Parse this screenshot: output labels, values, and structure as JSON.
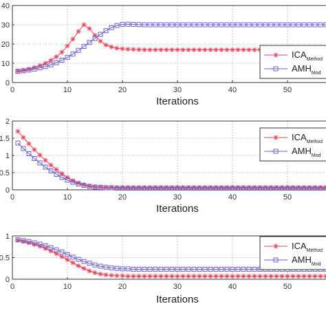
{
  "colors": {
    "ica": "#e8425a",
    "amh": "#6a5fc8",
    "grid": "#b8b8b8",
    "axis": "#333333"
  },
  "chart_data": [
    {
      "type": "line",
      "xlabel": "Iterations",
      "ylabel": "",
      "xlim": [
        0,
        57
      ],
      "ylim": [
        0,
        40
      ],
      "xticks": [
        0,
        10,
        20,
        30,
        40,
        50
      ],
      "yticks": [
        0,
        10,
        20,
        30,
        40
      ],
      "yticklabels": [
        "0",
        "10",
        "20",
        "30",
        "40"
      ],
      "grid": true,
      "legend": "right",
      "x": [
        1,
        2,
        3,
        4,
        5,
        6,
        7,
        8,
        9,
        10,
        11,
        12,
        13,
        14,
        15,
        16,
        17,
        18,
        19,
        20,
        21,
        22,
        23,
        24,
        25,
        26,
        27,
        28,
        29,
        30,
        31,
        32,
        33,
        34,
        35,
        36,
        37,
        38,
        39,
        40,
        41,
        42,
        43,
        44,
        45,
        46,
        47,
        48,
        49,
        50,
        51,
        52,
        53,
        54,
        55,
        56,
        57
      ],
      "series": [
        {
          "name": "ICA",
          "sub": "Method",
          "marker": "star",
          "values": [
            6,
            6.4,
            7,
            7.8,
            8.8,
            10,
            11.5,
            13.4,
            15.8,
            19,
            22.5,
            26.5,
            30,
            28,
            24.5,
            21.5,
            19.5,
            18.5,
            17.8,
            17.5,
            17.3,
            17.2,
            17.1,
            17,
            17,
            17,
            17,
            17,
            17,
            17,
            17,
            17,
            17,
            17,
            17,
            17,
            17,
            17,
            17,
            17,
            17,
            17,
            17,
            17,
            17,
            17,
            17,
            17,
            17,
            17,
            17,
            17,
            17,
            17,
            17,
            17,
            17
          ]
        },
        {
          "name": "AMH",
          "sub": "Mod",
          "marker": "square",
          "values": [
            5.8,
            6.1,
            6.5,
            7,
            7.6,
            8.3,
            9.2,
            10.3,
            11.6,
            13.1,
            14.8,
            16.7,
            18.7,
            20.8,
            22.9,
            25,
            26.9,
            28.5,
            29.6,
            30.2,
            30.3,
            30.2,
            30.1,
            30,
            30,
            30,
            30,
            30,
            30,
            30,
            30,
            30,
            30,
            30,
            30,
            30,
            30,
            30,
            30,
            30,
            30,
            30,
            30,
            30,
            30,
            30,
            30,
            30,
            30,
            30,
            30,
            30,
            30,
            30,
            30,
            30,
            30
          ]
        }
      ]
    },
    {
      "type": "line",
      "xlabel": "Iterations",
      "ylabel": "",
      "xlim": [
        0,
        57
      ],
      "ylim": [
        0,
        2
      ],
      "xticks": [
        0,
        10,
        20,
        30,
        40,
        50
      ],
      "yticks": [
        0,
        0.5,
        1,
        1.5,
        2
      ],
      "yticklabels": [
        "0",
        "0.5",
        "1",
        "1.5",
        "2"
      ],
      "grid": true,
      "legend": "right",
      "x": [
        1,
        2,
        3,
        4,
        5,
        6,
        7,
        8,
        9,
        10,
        11,
        12,
        13,
        14,
        15,
        16,
        17,
        18,
        19,
        20,
        21,
        22,
        23,
        24,
        25,
        26,
        27,
        28,
        29,
        30,
        31,
        32,
        33,
        34,
        35,
        36,
        37,
        38,
        39,
        40,
        41,
        42,
        43,
        44,
        45,
        46,
        47,
        48,
        49,
        50,
        51,
        52,
        53,
        54,
        55,
        56,
        57
      ],
      "series": [
        {
          "name": "ICA",
          "sub": "Method",
          "marker": "star",
          "values": [
            1.7,
            1.52,
            1.34,
            1.17,
            1.01,
            0.86,
            0.72,
            0.59,
            0.47,
            0.36,
            0.27,
            0.2,
            0.15,
            0.11,
            0.09,
            0.08,
            0.07,
            0.07,
            0.07,
            0.07,
            0.07,
            0.07,
            0.07,
            0.07,
            0.07,
            0.07,
            0.07,
            0.07,
            0.07,
            0.07,
            0.07,
            0.07,
            0.07,
            0.07,
            0.07,
            0.07,
            0.07,
            0.07,
            0.07,
            0.07,
            0.07,
            0.07,
            0.07,
            0.07,
            0.07,
            0.07,
            0.07,
            0.07,
            0.07,
            0.07,
            0.07,
            0.07,
            0.07,
            0.07,
            0.07,
            0.07,
            0.07
          ]
        },
        {
          "name": "AMH",
          "sub": "Mod",
          "marker": "square",
          "values": [
            1.36,
            1.2,
            1.05,
            0.91,
            0.78,
            0.66,
            0.55,
            0.45,
            0.36,
            0.28,
            0.22,
            0.17,
            0.13,
            0.1,
            0.08,
            0.07,
            0.06,
            0.06,
            0.05,
            0.05,
            0.05,
            0.05,
            0.05,
            0.05,
            0.05,
            0.05,
            0.05,
            0.05,
            0.05,
            0.05,
            0.05,
            0.05,
            0.05,
            0.05,
            0.05,
            0.05,
            0.05,
            0.05,
            0.05,
            0.05,
            0.05,
            0.05,
            0.05,
            0.05,
            0.05,
            0.05,
            0.05,
            0.05,
            0.05,
            0.05,
            0.05,
            0.05,
            0.05,
            0.05,
            0.05,
            0.05,
            0.05
          ]
        }
      ]
    },
    {
      "type": "line",
      "xlabel": "Iterations",
      "ylabel": "",
      "xlim": [
        0,
        57
      ],
      "ylim": [
        0,
        1
      ],
      "xticks": [
        0,
        10,
        20,
        30,
        40,
        50
      ],
      "yticks": [
        0,
        0.5,
        1
      ],
      "yticklabels": [
        "0",
        "0.5",
        "1"
      ],
      "grid": true,
      "legend": "right",
      "x": [
        1,
        2,
        3,
        4,
        5,
        6,
        7,
        8,
        9,
        10,
        11,
        12,
        13,
        14,
        15,
        16,
        17,
        18,
        19,
        20,
        21,
        22,
        23,
        24,
        25,
        26,
        27,
        28,
        29,
        30,
        31,
        32,
        33,
        34,
        35,
        36,
        37,
        38,
        39,
        40,
        41,
        42,
        43,
        44,
        45,
        46,
        47,
        48,
        49,
        50,
        51,
        52,
        53,
        54,
        55,
        56,
        57
      ],
      "series": [
        {
          "name": "ICA",
          "sub": "Method",
          "marker": "star",
          "values": [
            0.9,
            0.87,
            0.84,
            0.8,
            0.76,
            0.71,
            0.65,
            0.59,
            0.52,
            0.45,
            0.38,
            0.31,
            0.25,
            0.19,
            0.15,
            0.12,
            0.1,
            0.09,
            0.08,
            0.08,
            0.07,
            0.07,
            0.07,
            0.07,
            0.07,
            0.07,
            0.07,
            0.07,
            0.07,
            0.07,
            0.07,
            0.07,
            0.07,
            0.07,
            0.07,
            0.07,
            0.07,
            0.07,
            0.07,
            0.07,
            0.07,
            0.07,
            0.07,
            0.07,
            0.07,
            0.07,
            0.07,
            0.07,
            0.07,
            0.07,
            0.07,
            0.07,
            0.07,
            0.07,
            0.07,
            0.07,
            0.07
          ]
        },
        {
          "name": "AMH",
          "sub": "Mod",
          "marker": "square",
          "values": [
            0.91,
            0.89,
            0.87,
            0.84,
            0.81,
            0.77,
            0.73,
            0.68,
            0.63,
            0.57,
            0.51,
            0.46,
            0.41,
            0.37,
            0.33,
            0.3,
            0.28,
            0.26,
            0.25,
            0.24,
            0.24,
            0.23,
            0.23,
            0.23,
            0.23,
            0.23,
            0.23,
            0.23,
            0.23,
            0.23,
            0.23,
            0.23,
            0.23,
            0.23,
            0.23,
            0.23,
            0.23,
            0.23,
            0.23,
            0.23,
            0.23,
            0.23,
            0.23,
            0.23,
            0.23,
            0.23,
            0.23,
            0.23,
            0.23,
            0.23,
            0.23,
            0.23,
            0.23,
            0.23,
            0.23,
            0.23,
            0.23
          ]
        }
      ]
    }
  ]
}
